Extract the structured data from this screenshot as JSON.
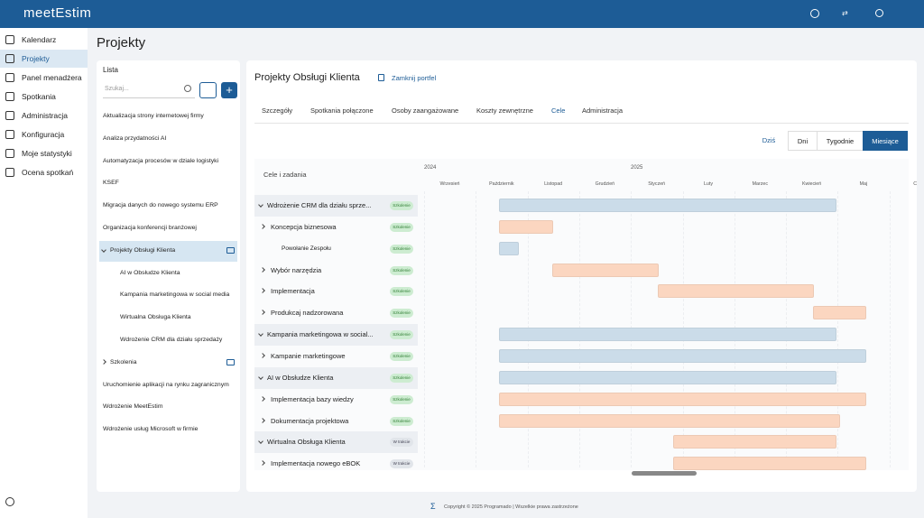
{
  "header": {
    "logo": "meetEstim"
  },
  "sidebar": {
    "items": [
      "Kalendarz",
      "Projekty",
      "Panel menadżera",
      "Spotkania",
      "Administracja",
      "Konfiguracja",
      "Moje statystyki",
      "Ocena spotkań"
    ],
    "active": 1
  },
  "page_title": "Projekty",
  "list": {
    "title": "Lista",
    "search_placeholder": "Szukaj...",
    "items": [
      {
        "label": "Aktualizacja strony internetowej firmy",
        "level": 0
      },
      {
        "label": "Analiza przydatności AI",
        "level": 0
      },
      {
        "label": "Automatyzacja procesów w dziale logistyki",
        "level": 0
      },
      {
        "label": "KSEF",
        "level": 0
      },
      {
        "label": "Migracja danych do nowego systemu ERP",
        "level": 0
      },
      {
        "label": "Organizacja konferencji branżowej",
        "level": 0
      },
      {
        "label": "Projekty Obsługi Klienta",
        "level": 0,
        "group": "open",
        "selected": true
      },
      {
        "label": "AI w Obsłudze Klienta",
        "level": 1
      },
      {
        "label": "Kampania marketingowa w social media",
        "level": 1
      },
      {
        "label": "Wirtualna Obsługa Klienta",
        "level": 1
      },
      {
        "label": "Wdrożenie CRM dla działu sprzedaży",
        "level": 1
      },
      {
        "label": "Szkolenia",
        "level": 0,
        "group": "closed"
      },
      {
        "label": "Uruchomienie aplikacji na rynku zagranicznym",
        "level": 0
      },
      {
        "label": "Wdrożenie MeetEstim",
        "level": 0
      },
      {
        "label": "Wdrożenie usług Microsoft w firmie",
        "level": 0
      }
    ]
  },
  "project": {
    "title": "Projekty Obsługi Klienta",
    "close_link": "Zamknij portfel",
    "tabs": [
      "Szczegóły",
      "Spotkania połączone",
      "Osoby zaangażowane",
      "Koszty zewnętrzne",
      "Cele",
      "Administracja"
    ],
    "active_tab": 4,
    "view_buttons": [
      "Dziś",
      "Dni",
      "Tygodnie",
      "Miesiące"
    ],
    "active_view": 3
  },
  "gantt": {
    "column_header": "Cele i zadania",
    "years": [
      "2024",
      "2025"
    ],
    "months": [
      "Wrzesień",
      "Październik",
      "Listopad",
      "Grudzień",
      "Styczeń",
      "Luty",
      "Marzec",
      "Kwiecień",
      "Maj",
      "C"
    ],
    "rows": [
      {
        "label": "Wdrożenie CRM dla działu sprze...",
        "level": 0,
        "status": "Szkolenie",
        "start": 1.45,
        "end": 7.98,
        "color": "#cbdce9"
      },
      {
        "label": "Koncepcja biznesowa",
        "level": 1,
        "status": "Szkolenie",
        "start": 1.45,
        "end": 2.5,
        "color": "#fbd6c0"
      },
      {
        "label": "Powołanie Zespołu",
        "level": 2,
        "status": "Szkolenie",
        "start": 1.45,
        "end": 1.83,
        "color": "#cbdce9"
      },
      {
        "label": "Wybór narzędzia",
        "level": 1,
        "status": "Szkolenie",
        "start": 2.48,
        "end": 4.54,
        "color": "#fbd6c0"
      },
      {
        "label": "Implementacja",
        "level": 1,
        "status": "Szkolenie",
        "start": 4.52,
        "end": 7.54,
        "color": "#fbd6c0"
      },
      {
        "label": "Produkcaj nadzorowana",
        "level": 1,
        "status": "Szkolenie",
        "start": 7.52,
        "end": 8.55,
        "color": "#fbd6c0"
      },
      {
        "label": "Kampania marketingowa w social...",
        "level": 0,
        "status": "Szkolenie",
        "start": 1.45,
        "end": 7.98,
        "color": "#cbdce9"
      },
      {
        "label": "Kampanie marketingowe",
        "level": 1,
        "status": "Szkolenie",
        "start": 1.45,
        "end": 8.55,
        "color": "#cbdce9"
      },
      {
        "label": "AI w Obsłudze Klienta",
        "level": 0,
        "status": "Szkolenie",
        "start": 1.45,
        "end": 7.98,
        "color": "#cbdce9"
      },
      {
        "label": "Implementacja bazy wiedzy",
        "level": 1,
        "status": "Szkolenie",
        "start": 1.45,
        "end": 8.55,
        "color": "#fbd6c0"
      },
      {
        "label": "Dokumentacja projektowa",
        "level": 1,
        "status": "Szkolenie",
        "start": 1.45,
        "end": 8.05,
        "color": "#fbd6c0"
      },
      {
        "label": "Wirtualna Obsługa Klienta",
        "level": 0,
        "status": "W trakcie",
        "start": 4.82,
        "end": 7.98,
        "color": "#fbd6c0"
      },
      {
        "label": "Implementacja nowego eBOK",
        "level": 1,
        "status": "W trakcie",
        "start": 4.82,
        "end": 8.55,
        "color": "#fbd6c0"
      }
    ]
  },
  "footer": "Copyright © 2025 Programado | Wszelkie prawa zastrzeżone"
}
